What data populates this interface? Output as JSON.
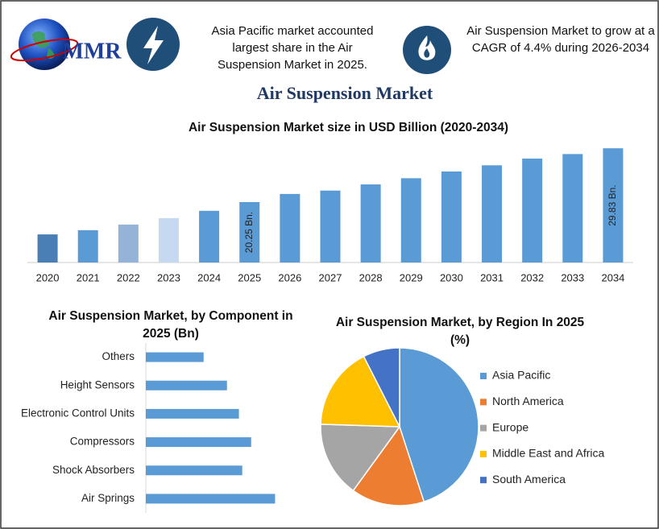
{
  "header": {
    "logo_text": "MMR",
    "fact_1": "Asia Pacific market accounted largest share in the Air Suspension Market in 2025.",
    "fact_2": "Air Suspension Market to grow at a CAGR of 4.4% during 2026-2034",
    "title": "Air Suspension Market"
  },
  "chart_data": [
    {
      "type": "bar",
      "title": "Air Suspension Market size in USD Billion (2020-2034)",
      "categories": [
        "2020",
        "2021",
        "2022",
        "2023",
        "2024",
        "2025",
        "2026",
        "2027",
        "2028",
        "2029",
        "2030",
        "2031",
        "2032",
        "2033",
        "2034"
      ],
      "values": [
        14.5,
        15.25,
        16.25,
        17.4,
        18.7,
        20.25,
        21.7,
        22.3,
        23.4,
        24.5,
        25.7,
        26.8,
        28.0,
        28.8,
        29.83
      ],
      "value_labels": [
        null,
        null,
        null,
        null,
        null,
        "20.25 Bn.",
        null,
        null,
        null,
        null,
        null,
        null,
        null,
        null,
        "29.83 Bn."
      ],
      "colors": [
        "#4a7fb5",
        "#5b9bd5",
        "#95b3d7",
        "#c5d9f1",
        "#5b9bd5",
        "#5b9bd5",
        "#5b9bd5",
        "#5b9bd5",
        "#5b9bd5",
        "#5b9bd5",
        "#5b9bd5",
        "#5b9bd5",
        "#5b9bd5",
        "#5b9bd5",
        "#5b9bd5"
      ],
      "ylim": [
        9.5,
        31
      ]
    },
    {
      "type": "bar",
      "horizontal": true,
      "title": "Air Suspension Market, by Component in 2025 (Bn)",
      "categories": [
        "Others",
        "Height Sensors",
        "Electronic Control Units",
        "Compressors",
        "Shock Absorbers",
        "Air Springs"
      ],
      "values": [
        2.08,
        2.92,
        3.35,
        3.79,
        3.47,
        4.65
      ],
      "color": "#5b9bd5",
      "xlim": [
        0,
        6
      ]
    },
    {
      "type": "pie",
      "title": "Air Suspension Market, by Region In 2025 (%)",
      "categories": [
        "Asia Pacific",
        "North America",
        "Europe",
        "Middle East and Africa",
        "South America"
      ],
      "values": [
        45,
        15,
        15.5,
        17,
        7.5
      ],
      "colors": [
        "#5b9bd5",
        "#ed7d31",
        "#a5a5a5",
        "#ffc000",
        "#4472c4"
      ],
      "legend": "right"
    }
  ]
}
